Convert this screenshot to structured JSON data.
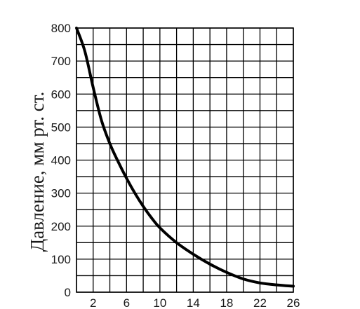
{
  "chart_data": {
    "type": "line",
    "title": "",
    "xlabel": "",
    "ylabel": "Давление, мм рт. ст.",
    "xlim": [
      0,
      26
    ],
    "ylim": [
      0,
      800
    ],
    "x_ticks": [
      2,
      6,
      10,
      14,
      18,
      22,
      26
    ],
    "y_ticks": [
      0,
      100,
      200,
      300,
      400,
      500,
      600,
      700,
      800
    ],
    "x_grid_step": 2,
    "y_grid_step": 50,
    "grid": true,
    "series": [
      {
        "x": [
          0,
          1,
          2,
          3,
          4,
          5,
          6,
          7,
          8,
          9,
          10,
          12,
          14,
          16,
          18,
          20,
          22,
          24,
          26
        ],
        "y": [
          800,
          730,
          620,
          520,
          450,
          395,
          345,
          300,
          260,
          225,
          195,
          150,
          115,
          85,
          60,
          40,
          28,
          22,
          18
        ]
      }
    ],
    "colors": {
      "line": "#000000",
      "grid": "#000000",
      "text": "#1a1a1a"
    }
  }
}
